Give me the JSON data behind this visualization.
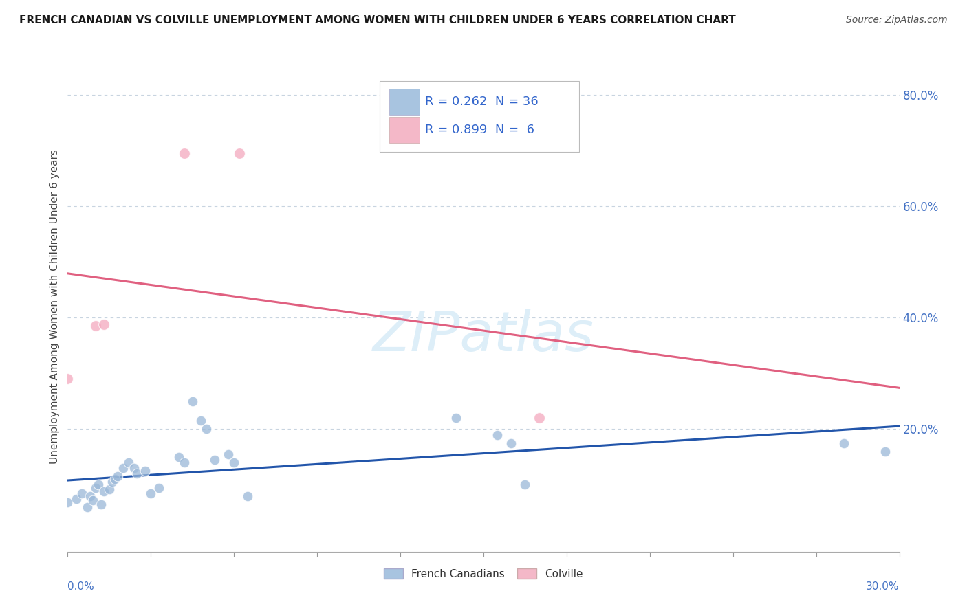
{
  "title": "FRENCH CANADIAN VS COLVILLE UNEMPLOYMENT AMONG WOMEN WITH CHILDREN UNDER 6 YEARS CORRELATION CHART",
  "source": "Source: ZipAtlas.com",
  "ylabel": "Unemployment Among Women with Children Under 6 years",
  "xlim": [
    0.0,
    0.3
  ],
  "ylim": [
    -0.02,
    0.86
  ],
  "ytick_values": [
    0.2,
    0.4,
    0.6,
    0.8
  ],
  "legend_label_french": "French Canadians",
  "legend_label_colville": "Colville",
  "watermark_text": "ZIPatlas",
  "french_canadians_scatter": [
    [
      0.0,
      0.068
    ],
    [
      0.003,
      0.075
    ],
    [
      0.005,
      0.085
    ],
    [
      0.007,
      0.06
    ],
    [
      0.008,
      0.08
    ],
    [
      0.009,
      0.072
    ],
    [
      0.01,
      0.095
    ],
    [
      0.011,
      0.1
    ],
    [
      0.012,
      0.065
    ],
    [
      0.013,
      0.088
    ],
    [
      0.015,
      0.092
    ],
    [
      0.016,
      0.105
    ],
    [
      0.017,
      0.11
    ],
    [
      0.018,
      0.115
    ],
    [
      0.02,
      0.13
    ],
    [
      0.022,
      0.14
    ],
    [
      0.024,
      0.13
    ],
    [
      0.025,
      0.12
    ],
    [
      0.028,
      0.125
    ],
    [
      0.03,
      0.085
    ],
    [
      0.033,
      0.095
    ],
    [
      0.04,
      0.15
    ],
    [
      0.042,
      0.14
    ],
    [
      0.045,
      0.25
    ],
    [
      0.048,
      0.215
    ],
    [
      0.05,
      0.2
    ],
    [
      0.053,
      0.145
    ],
    [
      0.058,
      0.155
    ],
    [
      0.06,
      0.14
    ],
    [
      0.065,
      0.08
    ],
    [
      0.14,
      0.22
    ],
    [
      0.155,
      0.19
    ],
    [
      0.16,
      0.175
    ],
    [
      0.165,
      0.1
    ],
    [
      0.28,
      0.175
    ],
    [
      0.295,
      0.16
    ]
  ],
  "colville_scatter": [
    [
      0.0,
      0.29
    ],
    [
      0.01,
      0.385
    ],
    [
      0.013,
      0.388
    ],
    [
      0.042,
      0.695
    ],
    [
      0.062,
      0.695
    ],
    [
      0.17,
      0.22
    ]
  ],
  "french_color": "#9ab8d8",
  "colville_color": "#f4a8be",
  "french_line_color": "#2255aa",
  "colville_line_color": "#e06080",
  "grid_color": "#c8d4e0",
  "background_color": "#ffffff",
  "watermark_color": "#ddeef8",
  "legend_box_color": "#a8c4e0",
  "legend_box_color2": "#f4b8c8"
}
